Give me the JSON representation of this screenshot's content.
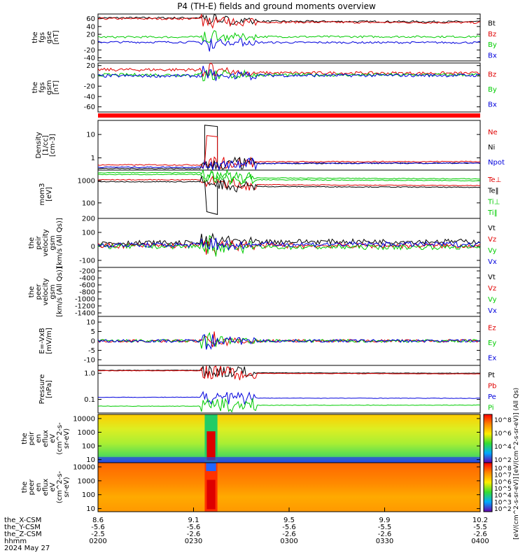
{
  "title": "P4 (TH-E) fields and ground moments overview",
  "colors": {
    "black": "#000000",
    "red": "#e00000",
    "green": "#00cc00",
    "blue": "#0000dd",
    "bar": "#ff0000"
  },
  "panels": [
    {
      "ylabel": [
        "the",
        "fgs",
        "gse",
        "[nT]"
      ],
      "ticks": [
        "60",
        "40",
        "20",
        "0",
        "-20",
        "-40"
      ],
      "log": false,
      "ymin": -48,
      "ymax": 72,
      "legend": [
        "Bt",
        "Bz",
        "By",
        "Bx"
      ],
      "legend_colors": [
        "black",
        "red",
        "green",
        "blue"
      ],
      "levels": [
        62,
        60,
        13,
        0
      ],
      "post_levels": [
        52,
        50,
        14,
        -1
      ],
      "amp": 2.5
    },
    {
      "ylabel": [
        "the",
        "fgs",
        "gsm",
        "[nT]"
      ],
      "ticks": [
        "20",
        "0",
        "-20",
        "-40",
        "-60"
      ],
      "log": false,
      "ymin": -70,
      "ymax": 25,
      "legend": [
        "Bz",
        "By",
        "Bx"
      ],
      "legend_colors": [
        "red",
        "green",
        "blue"
      ],
      "levels": [
        12,
        2,
        0
      ],
      "post_levels": [
        5,
        2,
        1
      ],
      "amp": 3
    },
    {
      "ylabel": [
        "Density",
        "[1/cc]",
        "[cm-3]"
      ],
      "ticks": [
        "10",
        "1"
      ],
      "log": true,
      "ymin": 0.3,
      "ymax": 40,
      "legend": [
        "Ne",
        "Ni",
        "Npot"
      ],
      "legend_colors": [
        "red",
        "black",
        "blue"
      ],
      "levels": [
        0.5,
        0.35,
        0.4
      ],
      "post_levels": [
        0.7,
        0.6,
        0.6
      ],
      "amp": 0.05
    },
    {
      "ylabel": [
        "mom3",
        "[eV]"
      ],
      "ticks": [
        "1000",
        "100"
      ],
      "log": true,
      "ymin": 20,
      "ymax": 3000,
      "legend": [
        "Te⊥",
        "Te‖",
        "Ti⊥",
        "Ti‖"
      ],
      "legend_colors": [
        "red",
        "black",
        "green",
        "green"
      ],
      "levels": [
        1100,
        900,
        2300,
        1900
      ],
      "post_levels": [
        600,
        500,
        1200,
        1000
      ],
      "amp": 0.04
    },
    {
      "ylabel": [
        "the",
        "peir",
        "velocity",
        "gsm",
        "[km/s (All Qs)]"
      ],
      "ticks": [
        "200",
        "100",
        "0",
        "-100"
      ],
      "log": false,
      "ymin": -150,
      "ymax": 200,
      "legend": [
        "Vt",
        "Vz",
        "Vy",
        "Vx"
      ],
      "legend_colors": [
        "black",
        "red",
        "green",
        "blue"
      ],
      "levels": [
        25,
        5,
        0,
        10
      ],
      "post_levels": [
        35,
        5,
        -5,
        15
      ],
      "amp": 18
    },
    {
      "ylabel": [
        "the",
        "peer",
        "velocity",
        "gsm",
        "[km/s (All Qs)]"
      ],
      "ticks": [
        "-200",
        "-400",
        "-600",
        "-800",
        "-1000",
        "-1200",
        "-1400"
      ],
      "log": false,
      "ymin": -1500,
      "ymax": -100,
      "legend": [
        "Vt",
        "Vz",
        "Vy",
        "Vx"
      ],
      "legend_colors": [
        "black",
        "red",
        "green",
        "blue"
      ],
      "levels": [],
      "post_levels": [],
      "amp": 0
    },
    {
      "ylabel": [
        "E=-VxB",
        "[mV/m]"
      ],
      "ticks": [
        "10",
        "5",
        "0",
        "-5",
        "-10"
      ],
      "log": false,
      "ymin": -13,
      "ymax": 13,
      "legend": [
        "Ez",
        "Ey",
        "Ex"
      ],
      "legend_colors": [
        "red",
        "green",
        "blue"
      ],
      "levels": [
        0,
        0,
        0
      ],
      "post_levels": [
        0,
        0,
        0
      ],
      "amp": 0.8
    },
    {
      "ylabel": [
        "Pressure",
        "[nPa]"
      ],
      "ticks": [
        "1.0",
        "0.1"
      ],
      "log": true,
      "ymin": 0.03,
      "ymax": 2,
      "legend": [
        "Pt",
        "Pb",
        "Pe",
        "Pi"
      ],
      "legend_colors": [
        "black",
        "red",
        "blue",
        "green"
      ],
      "levels": [
        1.3,
        1.25,
        0.12,
        0.055
      ],
      "post_levels": [
        1.0,
        0.95,
        0.11,
        0.06
      ],
      "amp": 0.02
    },
    {
      "ylabel": [
        "the",
        "peir",
        "en",
        "eflux",
        "eV",
        "(cm^2-s-",
        "sr-eV)"
      ],
      "ticks": [
        "10000",
        "1000",
        "100",
        "10"
      ],
      "log": true,
      "ymin": 6,
      "ymax": 20000,
      "spec": "ion"
    },
    {
      "ylabel": [
        "the",
        "peer",
        "en",
        "eflux",
        "eV",
        "(cm^2-s-",
        "sr-eV)"
      ],
      "ticks": [
        "10000",
        "1000",
        "100",
        "10"
      ],
      "log": true,
      "ymin": 6,
      "ymax": 20000,
      "spec": "electron"
    }
  ],
  "colorbars": [
    {
      "ticks": [
        "10^8",
        "10^6",
        "10^4",
        "10^2"
      ],
      "label": "[eV/(cm^2-s-sr-eV)] (All Qs)"
    },
    {
      "ticks": [
        "10^8",
        "10^7",
        "10^6",
        "10^5",
        "10^4",
        "10^3",
        "10^2"
      ],
      "label": "[eV/(cm^2-s-sr-eV)]"
    }
  ],
  "xaxis": {
    "row_labels": [
      "the_X-CSM",
      "the_Y-CSM",
      "the_Z-CSM",
      "hhmm",
      "2024 May 27"
    ],
    "columns": [
      {
        "t": 0,
        "vals": [
          "8.6",
          "-5.6",
          "-2.5",
          "0200"
        ]
      },
      {
        "t": 30,
        "vals": [
          "9.1",
          "-5.6",
          "-2.6",
          "0230"
        ]
      },
      {
        "t": 60,
        "vals": [
          "9.5",
          "-5.6",
          "-2.6",
          "0300"
        ]
      },
      {
        "t": 90,
        "vals": [
          "9.9",
          "-5.5",
          "-2.6",
          "0330"
        ]
      },
      {
        "t": 120,
        "vals": [
          "10.2",
          "-5.5",
          "-2.6",
          "0400"
        ]
      }
    ],
    "minutes_span": 120,
    "event_start_min": 33.5,
    "event_end_min": 37.5
  }
}
